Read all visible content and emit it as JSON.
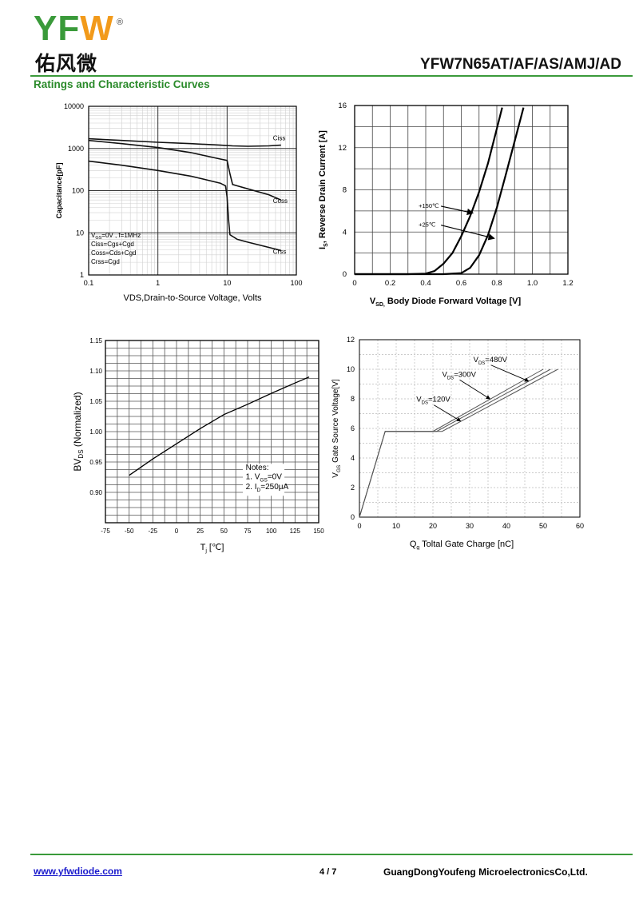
{
  "header": {
    "logo_letters": "YFW",
    "logo_reg": "®",
    "logo_cn": "佑风微",
    "logo_colors": {
      "letters": "#3a9a3a",
      "accent_u": "#f29a1a"
    },
    "part_number": "YFW7N65AT/AF/AS/AMJ/AD",
    "section_title": "Ratings and Characteristic Curves"
  },
  "footer": {
    "website": "www.yfwdiode.com",
    "page": "4 / 7",
    "company": "GuangDongYoufeng MicroelectronicsCo,Ltd."
  },
  "chart_data": [
    {
      "type": "line",
      "scale": "log-log",
      "xlabel": "VDS,Drain-to-Source Voltage, Volts",
      "ylabel": "Capacitance[pF]",
      "xlim": [
        0.1,
        100
      ],
      "ylim": [
        1,
        10000
      ],
      "x_ticks": [
        "0.1",
        "1",
        "10",
        "100"
      ],
      "y_ticks": [
        "1",
        "10",
        "100",
        "1000",
        "10000"
      ],
      "grid": true,
      "notes": [
        "VGS=0V , f=1MHz",
        "Ciss=Cgs+Cgd",
        "Coss=Cds+Cgd",
        "Crss=Cgd"
      ],
      "series": [
        {
          "name": "Ciss",
          "x": [
            0.1,
            0.3,
            1,
            3,
            8,
            12,
            20,
            40,
            60
          ],
          "y": [
            1700,
            1550,
            1400,
            1300,
            1200,
            1150,
            1130,
            1150,
            1200
          ]
        },
        {
          "name": "Coss",
          "x": [
            0.1,
            0.3,
            1,
            3,
            8,
            10,
            11,
            12,
            14,
            20,
            40,
            60
          ],
          "y": [
            1550,
            1300,
            1050,
            800,
            560,
            520,
            250,
            140,
            130,
            110,
            80,
            60
          ]
        },
        {
          "name": "Crss",
          "x": [
            0.1,
            0.3,
            1,
            3,
            8,
            9.5,
            10,
            10.5,
            11,
            14,
            20,
            40,
            60
          ],
          "y": [
            500,
            400,
            300,
            220,
            150,
            130,
            70,
            20,
            9,
            7,
            6,
            4.5,
            3.8
          ]
        }
      ]
    },
    {
      "type": "line",
      "xlabel": "VSD, Body Diode Forward Voltage [V]",
      "ylabel": "IS, Reverse Drain Current [A]",
      "xlim": [
        0,
        1.2
      ],
      "ylim": [
        0,
        16
      ],
      "x_ticks": [
        "0",
        "0.2",
        "0.4",
        "0.6",
        "0.8",
        "1.0",
        "1.2"
      ],
      "y_ticks": [
        "0",
        "4",
        "8",
        "12",
        "16"
      ],
      "grid": true,
      "series": [
        {
          "name": "+150℃",
          "x": [
            0.0,
            0.3,
            0.4,
            0.45,
            0.5,
            0.55,
            0.6,
            0.65,
            0.7,
            0.75,
            0.8,
            0.83
          ],
          "y": [
            0,
            0,
            0.05,
            0.3,
            1.0,
            2.0,
            3.6,
            5.5,
            7.8,
            10.5,
            13.8,
            15.8
          ]
        },
        {
          "name": "+25℃",
          "x": [
            0.0,
            0.5,
            0.6,
            0.65,
            0.7,
            0.75,
            0.8,
            0.85,
            0.9,
            0.95
          ],
          "y": [
            0,
            0,
            0.1,
            0.6,
            1.8,
            3.7,
            6.3,
            9.4,
            12.6,
            15.8
          ]
        }
      ]
    },
    {
      "type": "line",
      "xlabel": "Tj [℃]",
      "ylabel": "BVDS (Normalized)",
      "xlim": [
        -75,
        150
      ],
      "ylim": [
        0.85,
        1.15
      ],
      "x_ticks": [
        "-75",
        "-50",
        "-25",
        "0",
        "25",
        "50",
        "75",
        "100",
        "125",
        "150"
      ],
      "y_ticks": [
        "0.90",
        "0.95",
        "1.00",
        "1.05",
        "1.10",
        "1.15"
      ],
      "grid": true,
      "notes_title": "Notes:",
      "notes": [
        "1. VGS=0V",
        "2. ID=250μA"
      ],
      "series": [
        {
          "x": [
            -50,
            -25,
            0,
            25,
            50,
            75,
            100,
            125,
            140
          ],
          "y": [
            0.928,
            0.955,
            0.98,
            1.005,
            1.028,
            1.045,
            1.063,
            1.08,
            1.09
          ]
        }
      ]
    },
    {
      "type": "line",
      "xlabel": "Qg Toltal Gate Charge [nC]",
      "ylabel": "VGS Gate Source Voltage[V]",
      "xlim": [
        0,
        60
      ],
      "ylim": [
        0,
        12
      ],
      "x_ticks": [
        "0",
        "10",
        "20",
        "30",
        "40",
        "50",
        "60"
      ],
      "y_ticks": [
        "0",
        "2",
        "4",
        "6",
        "8",
        "10",
        "12"
      ],
      "grid": true,
      "series": [
        {
          "name": "VDS=120V",
          "x": [
            0,
            7,
            20,
            50
          ],
          "y": [
            0,
            5.8,
            5.8,
            10
          ]
        },
        {
          "name": "VDS=300V",
          "x": [
            0,
            7,
            21,
            52
          ],
          "y": [
            0,
            5.8,
            5.8,
            10
          ]
        },
        {
          "name": "VDS=480V",
          "x": [
            0,
            7,
            22.5,
            54
          ],
          "y": [
            0,
            5.8,
            5.8,
            10
          ]
        }
      ]
    }
  ]
}
